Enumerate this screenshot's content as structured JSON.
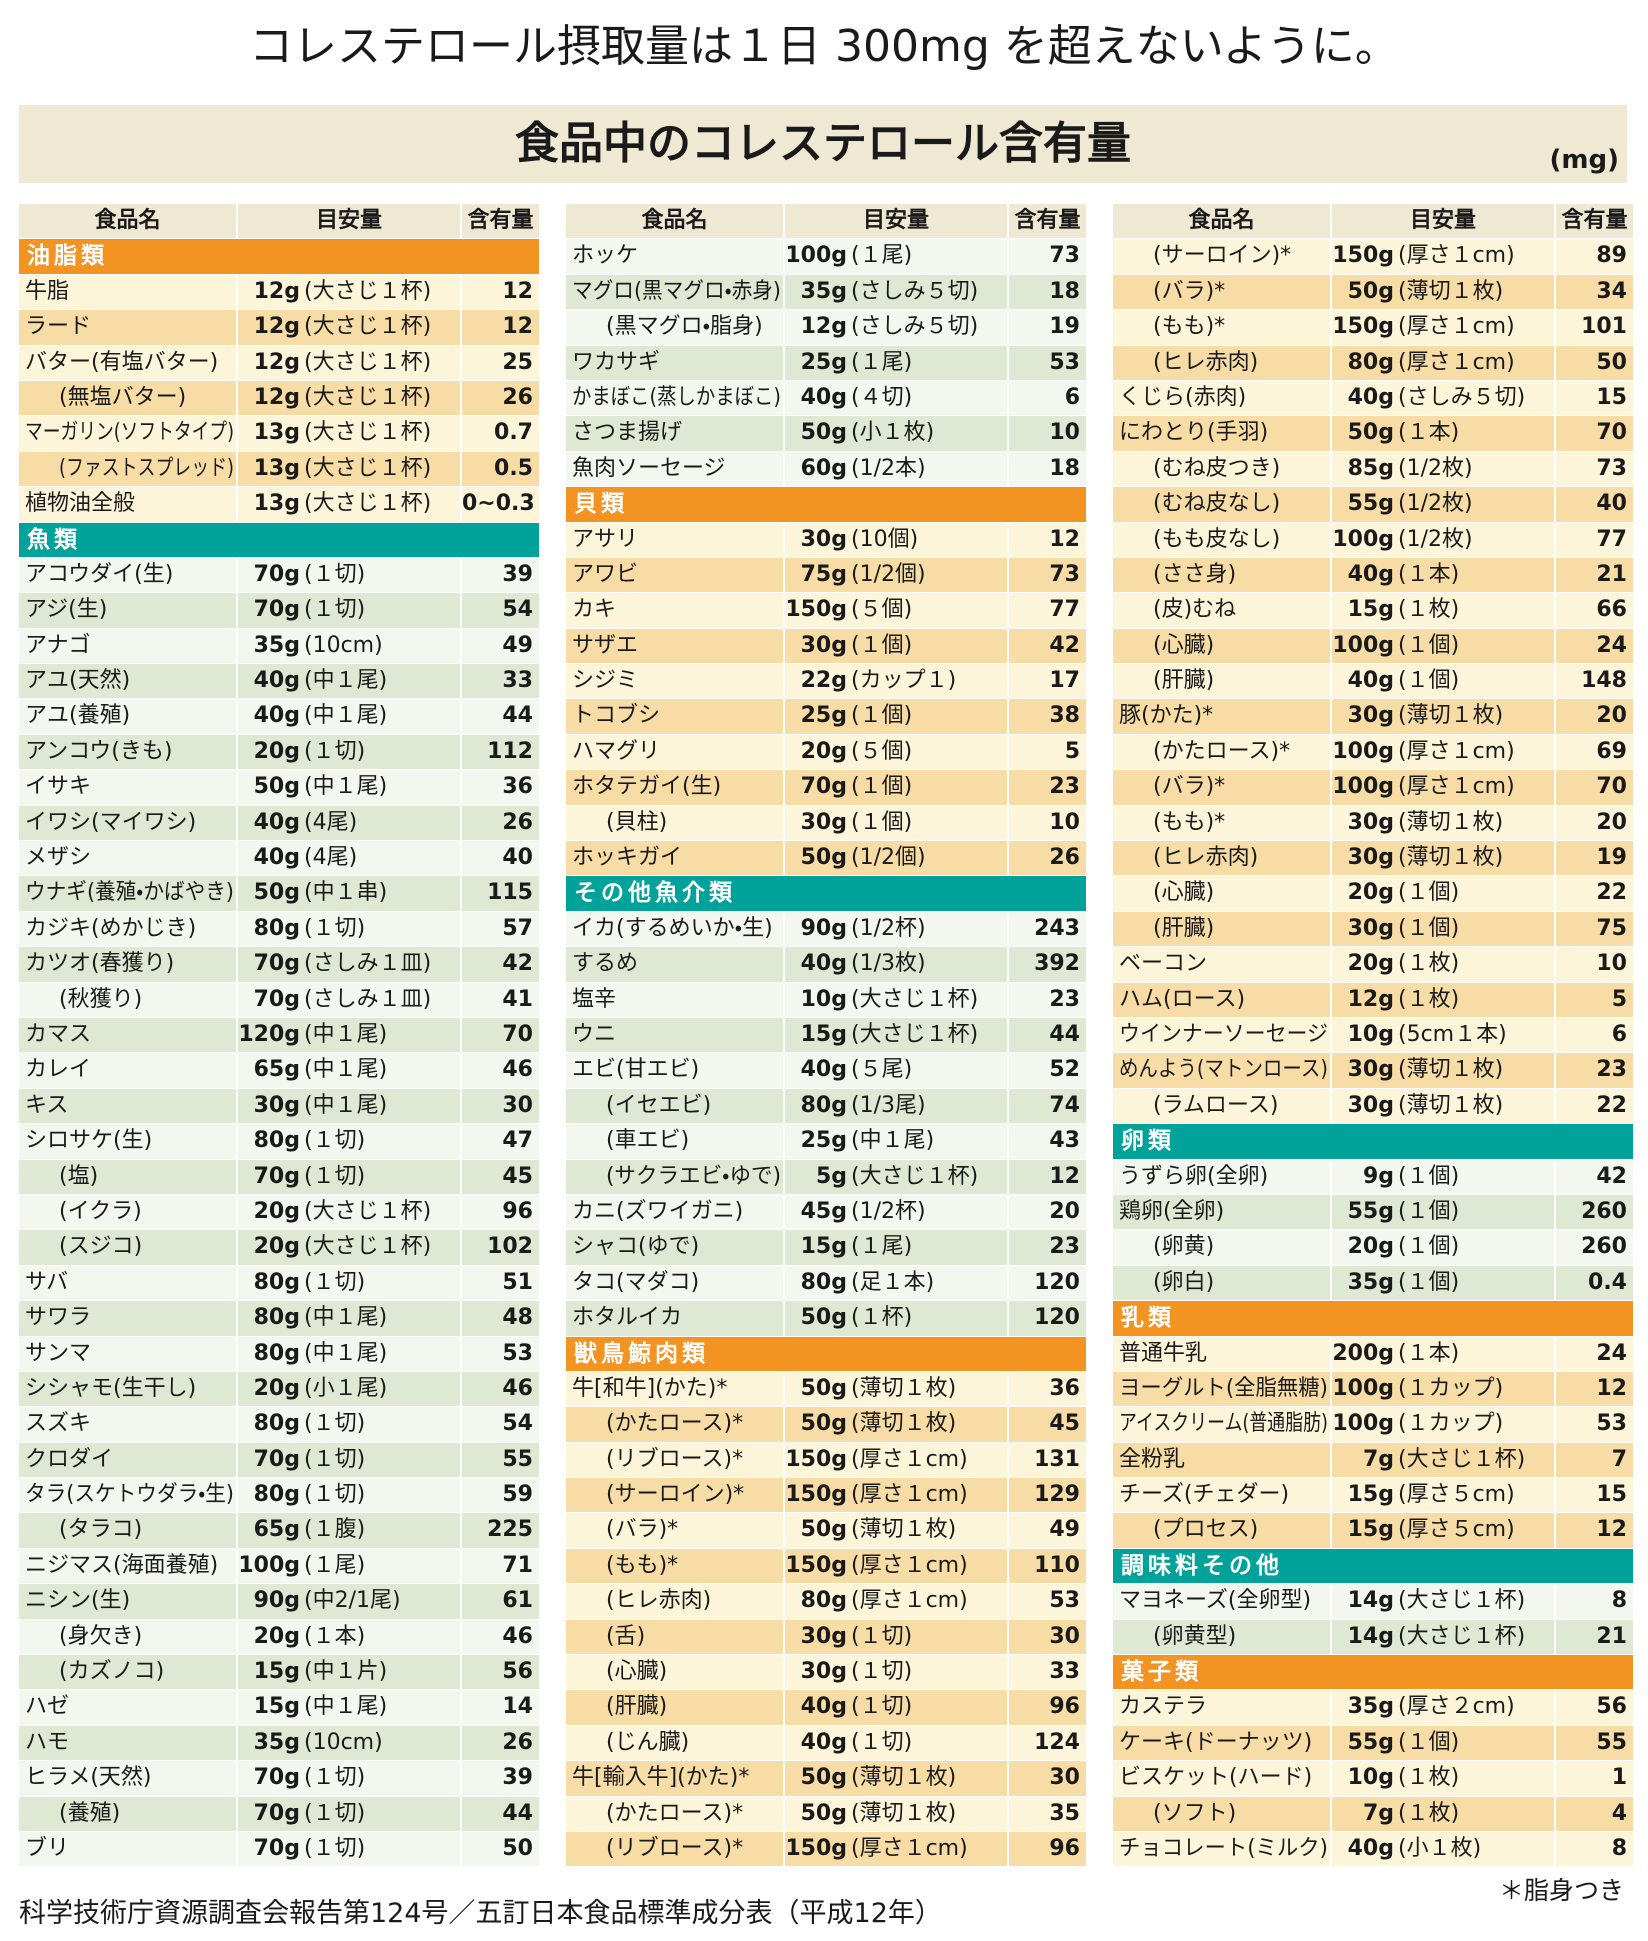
{
  "header": {
    "title": "コレステロール摂取量は１日 300mg を超えないように。"
  },
  "banner": {
    "title": "食品中のコレステロール含有量",
    "unit": "(mg)"
  },
  "columns": [
    {
      "headers": [
        "食品名",
        "目安量",
        "含有量"
      ],
      "sections": [
        {
          "title": "油脂類",
          "theme": "orange",
          "rows": [
            [
              "牛脂",
              "12g",
              "(大さじ１杯)",
              "12"
            ],
            [
              "ラード",
              "12g",
              "(大さじ１杯)",
              "12"
            ],
            [
              "バター(有塩バター)",
              "12g",
              "(大さじ１杯)",
              "25"
            ],
            [
              "(無塩バター)",
              "12g",
              "(大さじ１杯)",
              "26"
            ],
            [
              "マーガリン(ソフトタイプ)",
              "13g",
              "(大さじ１杯)",
              "0.7"
            ],
            [
              "(ファストスプレッド)",
              "13g",
              "(大さじ１杯)",
              "0.5"
            ],
            [
              "植物油全般",
              "13g",
              "(大さじ１杯)",
              "0~0.3"
            ]
          ]
        },
        {
          "title": "魚類",
          "theme": "teal",
          "rows": [
            [
              "アコウダイ(生)",
              "70g",
              "(１切)",
              "39"
            ],
            [
              "アジ(生)",
              "70g",
              "(１切)",
              "54"
            ],
            [
              "アナゴ",
              "35g",
              "(10cm)",
              "49"
            ],
            [
              "アユ(天然)",
              "40g",
              "(中１尾)",
              "33"
            ],
            [
              "アユ(養殖)",
              "40g",
              "(中１尾)",
              "44"
            ],
            [
              "アンコウ(きも)",
              "20g",
              "(１切)",
              "112"
            ],
            [
              "イサキ",
              "50g",
              "(中１尾)",
              "36"
            ],
            [
              "イワシ(マイワシ)",
              "40g",
              "(4尾)",
              "26"
            ],
            [
              "メザシ",
              "40g",
              "(4尾)",
              "40"
            ],
            [
              "ウナギ(養殖・かばやき)",
              "50g",
              "(中１串)",
              "115"
            ],
            [
              "カジキ(めかじき)",
              "80g",
              "(１切)",
              "57"
            ],
            [
              "カツオ(春獲り)",
              "70g",
              "(さしみ１皿)",
              "42"
            ],
            [
              "(秋獲り)",
              "70g",
              "(さしみ１皿)",
              "41"
            ],
            [
              "カマス",
              "120g",
              "(中１尾)",
              "70"
            ],
            [
              "カレイ",
              "65g",
              "(中１尾)",
              "46"
            ],
            [
              "キス",
              "30g",
              "(中１尾)",
              "30"
            ],
            [
              "シロサケ(生)",
              "80g",
              "(１切)",
              "47"
            ],
            [
              "(塩)",
              "70g",
              "(１切)",
              "45"
            ],
            [
              "(イクラ)",
              "20g",
              "(大さじ１杯)",
              "96"
            ],
            [
              "(スジコ)",
              "20g",
              "(大さじ１杯)",
              "102"
            ],
            [
              "サバ",
              "80g",
              "(１切)",
              "51"
            ],
            [
              "サワラ",
              "80g",
              "(中１尾)",
              "48"
            ],
            [
              "サンマ",
              "80g",
              "(中１尾)",
              "53"
            ],
            [
              "シシャモ(生干し)",
              "20g",
              "(小１尾)",
              "46"
            ],
            [
              "スズキ",
              "80g",
              "(１切)",
              "54"
            ],
            [
              "クロダイ",
              "70g",
              "(１切)",
              "55"
            ],
            [
              "タラ(スケトウダラ・生)",
              "80g",
              "(１切)",
              "59"
            ],
            [
              "(タラコ)",
              "65g",
              "(１腹)",
              "225"
            ],
            [
              "ニジマス(海面養殖)",
              "100g",
              "(１尾)",
              "71"
            ],
            [
              "ニシン(生)",
              "90g",
              "(中2/1尾)",
              "61"
            ],
            [
              "(身欠き)",
              "20g",
              "(１本)",
              "46"
            ],
            [
              "(カズノコ)",
              "15g",
              "(中１片)",
              "56"
            ],
            [
              "ハゼ",
              "15g",
              "(中１尾)",
              "14"
            ],
            [
              "ハモ",
              "35g",
              "(10cm)",
              "26"
            ],
            [
              "ヒラメ(天然)",
              "70g",
              "(１切)",
              "39"
            ],
            [
              "(養殖)",
              "70g",
              "(１切)",
              "44"
            ],
            [
              "ブリ",
              "70g",
              "(１切)",
              "50"
            ]
          ]
        }
      ]
    },
    {
      "headers": [
        "食品名",
        "目安量",
        "含有量"
      ],
      "sections": [
        {
          "theme": "teal",
          "rows": [
            [
              "ホッケ",
              "100g",
              "(１尾)",
              "73"
            ],
            [
              "マグロ(黒マグロ・赤身)",
              "35g",
              "(さしみ５切)",
              "18"
            ],
            [
              "(黒マグロ・脂身)",
              "12g",
              "(さしみ５切)",
              "19"
            ],
            [
              "ワカサギ",
              "25g",
              "(１尾)",
              "53"
            ],
            [
              "かまぼこ(蒸しかまぼこ)",
              "40g",
              "(４切)",
              "6"
            ],
            [
              "さつま揚げ",
              "50g",
              "(小１枚)",
              "10"
            ],
            [
              "魚肉ソーセージ",
              "60g",
              "(1/2本)",
              "18"
            ]
          ]
        },
        {
          "title": "貝類",
          "theme": "orange",
          "rows": [
            [
              "アサリ",
              "30g",
              "(10個)",
              "12"
            ],
            [
              "アワビ",
              "75g",
              "(1/2個)",
              "73"
            ],
            [
              "カキ",
              "150g",
              "(５個)",
              "77"
            ],
            [
              "サザエ",
              "30g",
              "(１個)",
              "42"
            ],
            [
              "シジミ",
              "22g",
              "(カップ１)",
              "17"
            ],
            [
              "トコブシ",
              "25g",
              "(１個)",
              "38"
            ],
            [
              "ハマグリ",
              "20g",
              "(５個)",
              "5"
            ],
            [
              "ホタテガイ(生)",
              "70g",
              "(１個)",
              "23"
            ],
            [
              "(貝柱)",
              "30g",
              "(１個)",
              "10"
            ],
            [
              "ホッキガイ",
              "50g",
              "(1/2個)",
              "26"
            ]
          ]
        },
        {
          "title": "その他魚介類",
          "theme": "teal",
          "rows": [
            [
              "イカ(するめいか・生)",
              "90g",
              "(1/2杯)",
              "243"
            ],
            [
              "するめ",
              "40g",
              "(1/3枚)",
              "392"
            ],
            [
              "塩辛",
              "10g",
              "(大さじ１杯)",
              "23"
            ],
            [
              "ウニ",
              "15g",
              "(大さじ１杯)",
              "44"
            ],
            [
              "エビ(甘エビ)",
              "40g",
              "(５尾)",
              "52"
            ],
            [
              "(イセエビ)",
              "80g",
              "(1/3尾)",
              "74"
            ],
            [
              "(車エビ)",
              "25g",
              "(中１尾)",
              "43"
            ],
            [
              "(サクラエビ・ゆで)",
              "5g",
              "(大さじ１杯)",
              "12"
            ],
            [
              "カニ(ズワイガニ)",
              "45g",
              "(1/2杯)",
              "20"
            ],
            [
              "シャコ(ゆで)",
              "15g",
              "(１尾)",
              "23"
            ],
            [
              "タコ(マダコ)",
              "80g",
              "(足１本)",
              "120"
            ],
            [
              "ホタルイカ",
              "50g",
              "(１杯)",
              "120"
            ]
          ]
        },
        {
          "title": "獣鳥鯨肉類",
          "theme": "orange",
          "rows": [
            [
              "牛[和牛](かた)*",
              "50g",
              "(薄切１枚)",
              "36"
            ],
            [
              "(かたロース)*",
              "50g",
              "(薄切１枚)",
              "45"
            ],
            [
              "(リブロース)*",
              "150g",
              "(厚さ１cm)",
              "131"
            ],
            [
              "(サーロイン)*",
              "150g",
              "(厚さ１cm)",
              "129"
            ],
            [
              "(バラ)*",
              "50g",
              "(薄切１枚)",
              "49"
            ],
            [
              "(もも)*",
              "150g",
              "(厚さ１cm)",
              "110"
            ],
            [
              "(ヒレ赤肉)",
              "80g",
              "(厚さ１cm)",
              "53"
            ],
            [
              "(舌)",
              "30g",
              "(１切)",
              "30"
            ],
            [
              "(心臓)",
              "30g",
              "(１切)",
              "33"
            ],
            [
              "(肝臓)",
              "40g",
              "(１切)",
              "96"
            ],
            [
              "(じん臓)",
              "40g",
              "(１切)",
              "124"
            ],
            [
              "牛[輸入牛](かた)*",
              "50g",
              "(薄切１枚)",
              "30"
            ],
            [
              "(かたロース)*",
              "50g",
              "(薄切１枚)",
              "35"
            ],
            [
              "(リブロース)*",
              "150g",
              "(厚さ１cm)",
              "96"
            ]
          ]
        }
      ]
    },
    {
      "headers": [
        "食品名",
        "目安量",
        "含有量"
      ],
      "sections": [
        {
          "theme": "orange",
          "rows": [
            [
              "(サーロイン)*",
              "150g",
              "(厚さ１cm)",
              "89"
            ],
            [
              "(バラ)*",
              "50g",
              "(薄切１枚)",
              "34"
            ],
            [
              "(もも)*",
              "150g",
              "(厚さ１cm)",
              "101"
            ],
            [
              "(ヒレ赤肉)",
              "80g",
              "(厚さ１cm)",
              "50"
            ],
            [
              "くじら(赤肉)",
              "40g",
              "(さしみ５切)",
              "15"
            ],
            [
              "にわとり(手羽)",
              "50g",
              "(１本)",
              "70"
            ],
            [
              "(むね皮つき)",
              "85g",
              "(1/2枚)",
              "73"
            ],
            [
              "(むね皮なし)",
              "55g",
              "(1/2枚)",
              "40"
            ],
            [
              "(もも皮なし)",
              "100g",
              "(1/2枚)",
              "77"
            ],
            [
              "(ささ身)",
              "40g",
              "(１本)",
              "21"
            ],
            [
              "(皮)むね",
              "15g",
              "(１枚)",
              "66"
            ],
            [
              "(心臓)",
              "100g",
              "(１個)",
              "24"
            ],
            [
              "(肝臓)",
              "40g",
              "(１個)",
              "148"
            ],
            [
              "豚(かた)*",
              "30g",
              "(薄切１枚)",
              "20"
            ],
            [
              "(かたロース)*",
              "100g",
              "(厚さ１cm)",
              "69"
            ],
            [
              "(バラ)*",
              "100g",
              "(厚さ１cm)",
              "70"
            ],
            [
              "(もも)*",
              "30g",
              "(薄切１枚)",
              "20"
            ],
            [
              "(ヒレ赤肉)",
              "30g",
              "(薄切１枚)",
              "19"
            ],
            [
              "(心臓)",
              "20g",
              "(１個)",
              "22"
            ],
            [
              "(肝臓)",
              "30g",
              "(１個)",
              "75"
            ],
            [
              "ベーコン",
              "20g",
              "(１枚)",
              "10"
            ],
            [
              "ハム(ロース)",
              "12g",
              "(１枚)",
              "5"
            ],
            [
              "ウインナーソーセージ",
              "10g",
              "(5cm１本)",
              "6"
            ],
            [
              "めんよう(マトンロース)",
              "30g",
              "(薄切１枚)",
              "23"
            ],
            [
              "(ラムロース)",
              "30g",
              "(薄切１枚)",
              "22"
            ]
          ]
        },
        {
          "title": "卵類",
          "theme": "teal",
          "rows": [
            [
              "うずら卵(全卵)",
              "9g",
              "(１個)",
              "42"
            ],
            [
              "鶏卵(全卵)",
              "55g",
              "(１個)",
              "260"
            ],
            [
              "(卵黄)",
              "20g",
              "(１個)",
              "260"
            ],
            [
              "(卵白)",
              "35g",
              "(１個)",
              "0.4"
            ]
          ]
        },
        {
          "title": "乳類",
          "theme": "orange",
          "rows": [
            [
              "普通牛乳",
              "200g",
              "(１本)",
              "24"
            ],
            [
              "ヨーグルト(全脂無糖)",
              "100g",
              "(１カップ)",
              "12"
            ],
            [
              "アイスクリーム(普通脂肪)",
              "100g",
              "(１カップ)",
              "53"
            ],
            [
              "全粉乳",
              "7g",
              "(大さじ１杯)",
              "7"
            ],
            [
              "チーズ(チェダー)",
              "15g",
              "(厚さ５cm)",
              "15"
            ],
            [
              "(プロセス)",
              "15g",
              "(厚さ５cm)",
              "12"
            ]
          ]
        },
        {
          "title": "調味料その他",
          "theme": "teal",
          "rows": [
            [
              "マヨネーズ(全卵型)",
              "14g",
              "(大さじ１杯)",
              "8"
            ],
            [
              "(卵黄型)",
              "14g",
              "(大さじ１杯)",
              "21"
            ]
          ]
        },
        {
          "title": "菓子類",
          "theme": "orange",
          "rows": [
            [
              "カステラ",
              "35g",
              "(厚さ２cm)",
              "56"
            ],
            [
              "ケーキ(ドーナッツ)",
              "55g",
              "(１個)",
              "55"
            ],
            [
              "ビスケット(ハード)",
              "10g",
              "(１枚)",
              "1"
            ],
            [
              "(ソフト)",
              "7g",
              "(１枚)",
              "4"
            ],
            [
              "チョコレート(ミルク)",
              "40g",
              "(小１枚)",
              "8"
            ]
          ]
        }
      ]
    }
  ],
  "footer": {
    "source": "科学技術庁資源調査会報告第124号／五訂日本食品標準成分表（平成12年）",
    "note": "＊脂身つき"
  }
}
